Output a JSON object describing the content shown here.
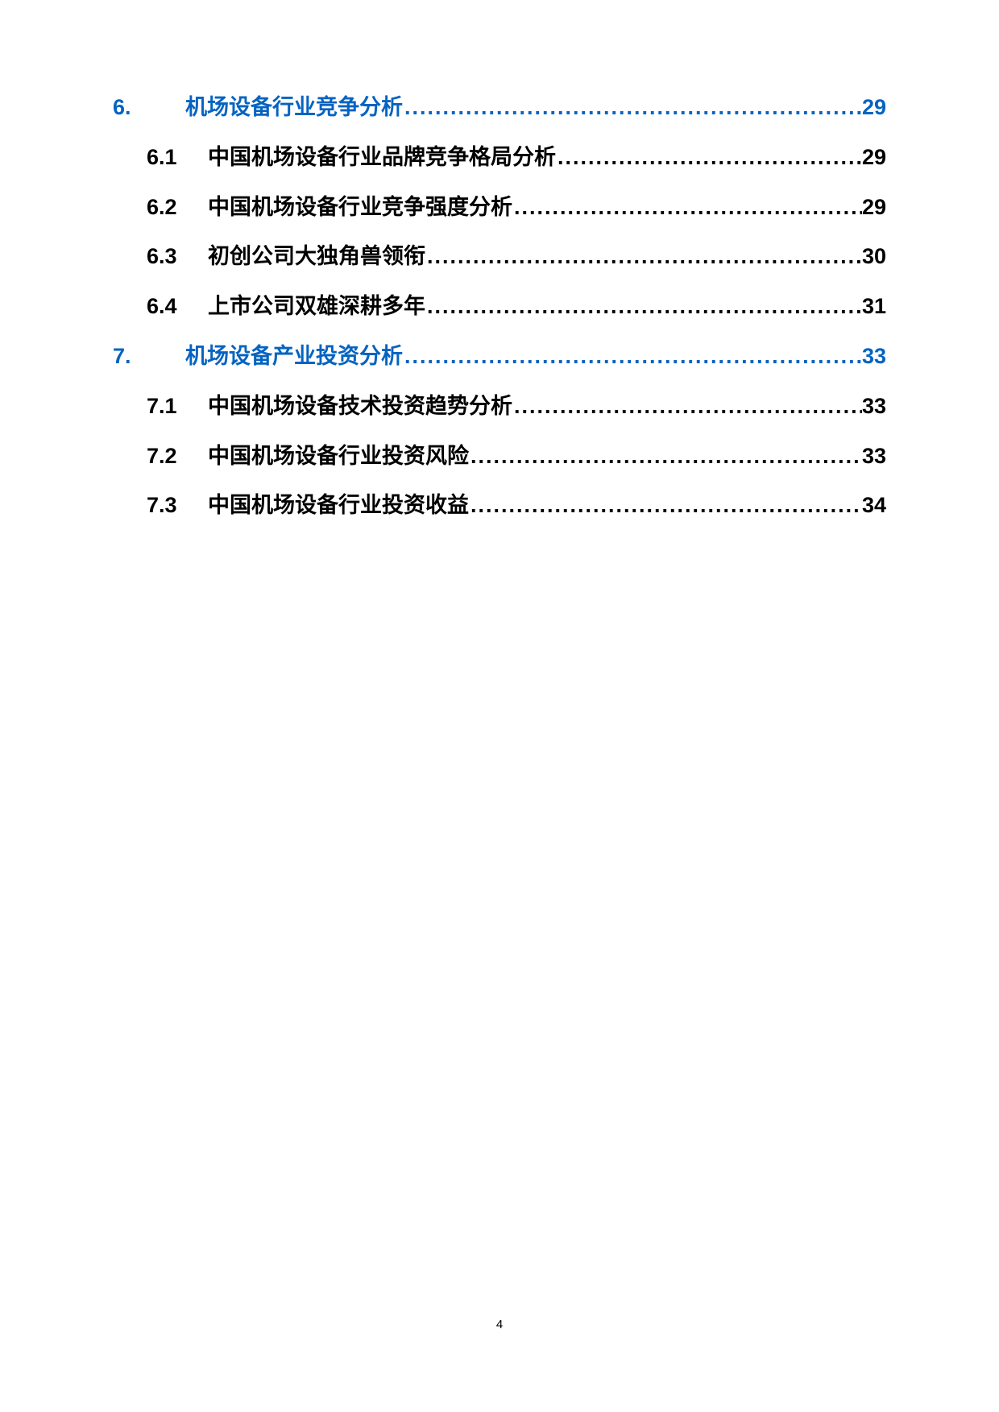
{
  "colors": {
    "link": "#0563c1",
    "text": "#000000",
    "background": "#ffffff"
  },
  "typography": {
    "toc_fontsize_pt": 20,
    "toc_fontweight": "bold",
    "pagenum_fontsize_pt": 11
  },
  "toc": [
    {
      "level": 1,
      "num": "6.",
      "title": "机场设备行业竞争分析",
      "page": "29",
      "link": true
    },
    {
      "level": 2,
      "num": "6.1",
      "title": "中国机场设备行业品牌竞争格局分析",
      "page": "29",
      "link": false
    },
    {
      "level": 2,
      "num": "6.2",
      "title": "中国机场设备行业竞争强度分析",
      "page": "29",
      "link": false
    },
    {
      "level": 2,
      "num": "6.3",
      "title": "初创公司大独角兽领衔",
      "page": "30",
      "link": false
    },
    {
      "level": 2,
      "num": "6.4",
      "title": "上市公司双雄深耕多年",
      "page": "31",
      "link": false
    },
    {
      "level": 1,
      "num": "7.",
      "title": "机场设备产业投资分析",
      "page": "33",
      "link": true
    },
    {
      "level": 2,
      "num": "7.1",
      "title": "中国机场设备技术投资趋势分析",
      "page": "33",
      "link": false
    },
    {
      "level": 2,
      "num": "7.2",
      "title": "中国机场设备行业投资风险",
      "page": "33",
      "link": false
    },
    {
      "level": 2,
      "num": "7.3",
      "title": "中国机场设备行业投资收益",
      "page": "34",
      "link": false
    }
  ],
  "page_number": "4"
}
